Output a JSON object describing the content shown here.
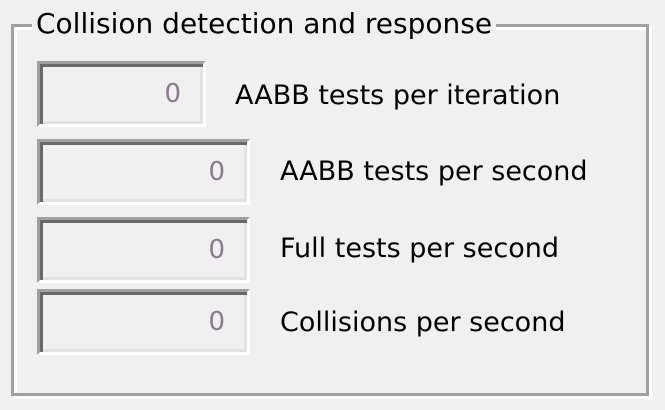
{
  "group": {
    "title": "Collision detection and response",
    "rows": [
      {
        "value": "0",
        "label": "AABB tests per iteration"
      },
      {
        "value": "0",
        "label": "AABB tests per second"
      },
      {
        "value": "0",
        "label": "Full tests per second"
      },
      {
        "value": "0",
        "label": "Collisions per second"
      }
    ]
  }
}
